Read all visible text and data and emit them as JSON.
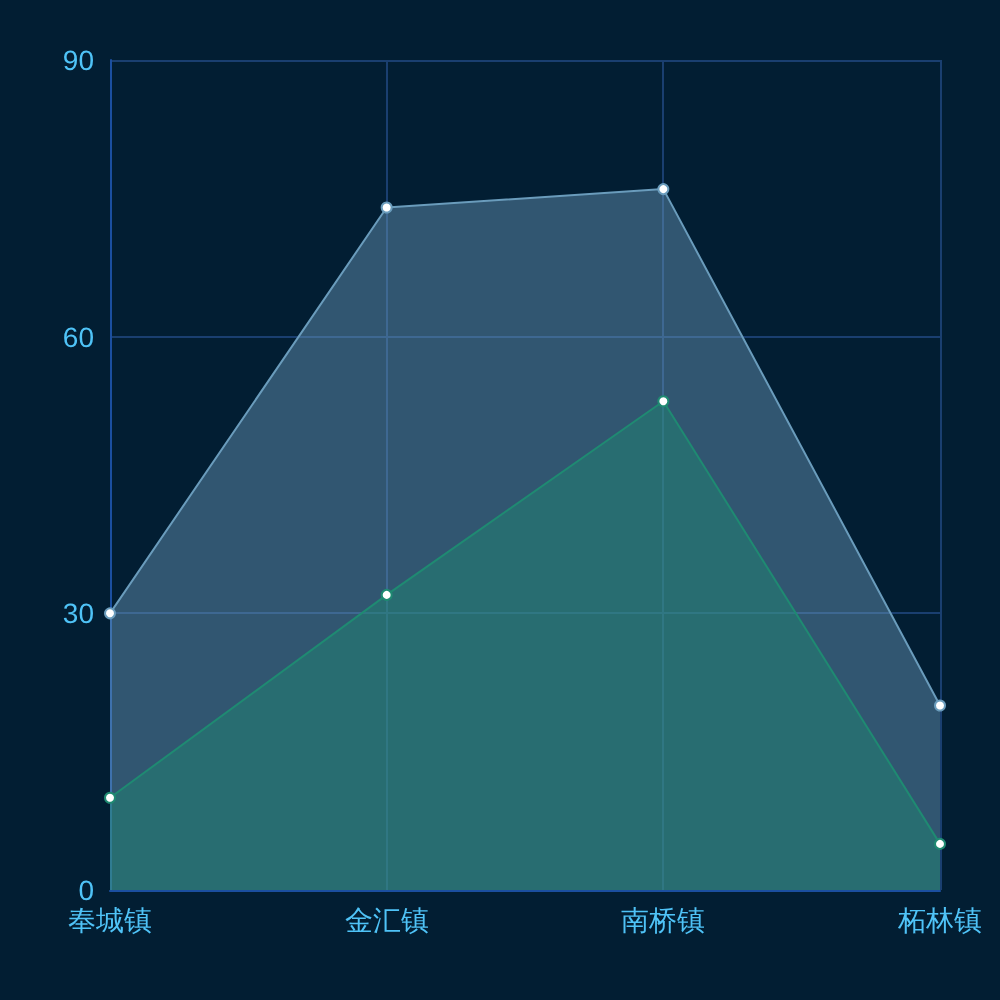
{
  "chart_data": {
    "type": "area",
    "categories": [
      "奉城镇",
      "金汇镇",
      "南桥镇",
      "柘林镇"
    ],
    "series": [
      {
        "color": "#6a9cbc",
        "values": [
          30,
          74,
          76,
          20
        ]
      },
      {
        "color": "#1f8a72",
        "values": [
          10,
          32,
          53,
          5
        ]
      }
    ],
    "ylim": [
      0,
      90
    ],
    "yticks": [
      0,
      30,
      60,
      90
    ],
    "grid": true,
    "marker": "circle"
  }
}
